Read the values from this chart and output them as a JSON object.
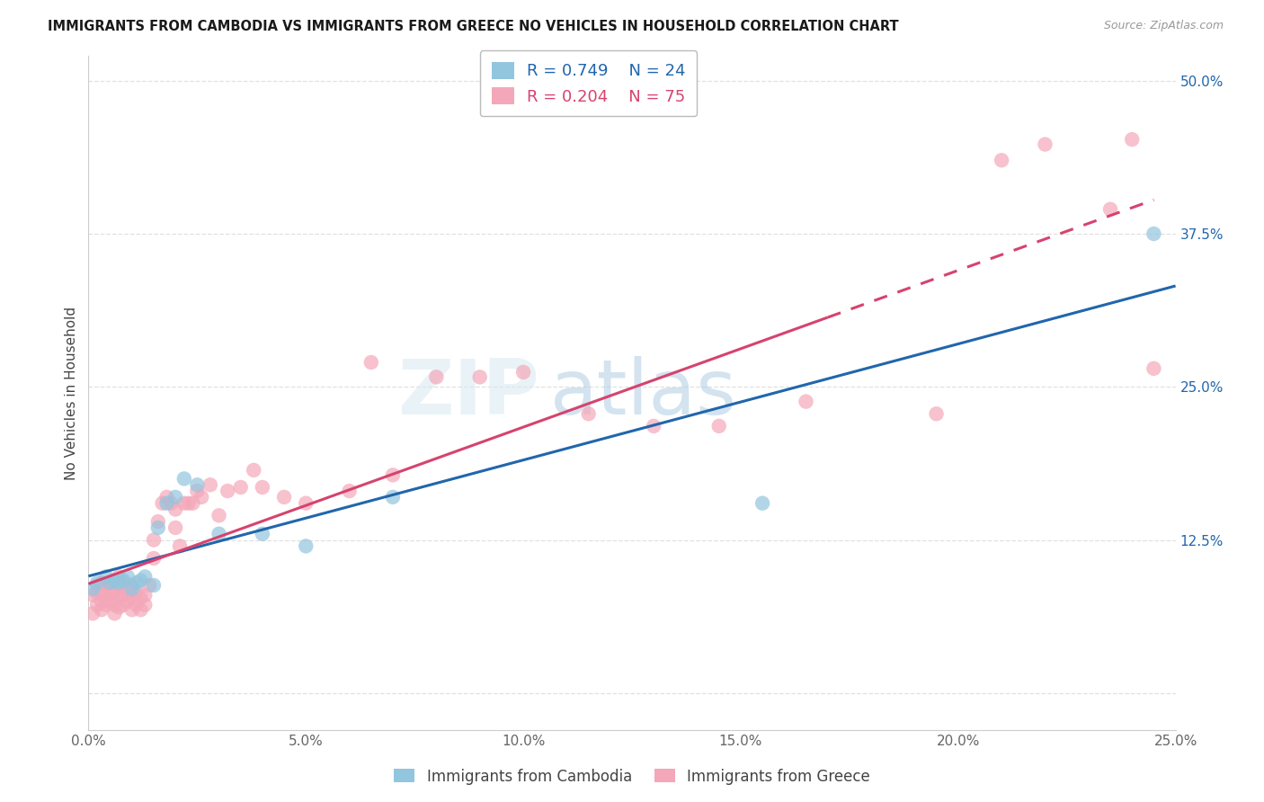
{
  "title": "IMMIGRANTS FROM CAMBODIA VS IMMIGRANTS FROM GREECE NO VEHICLES IN HOUSEHOLD CORRELATION CHART",
  "source": "Source: ZipAtlas.com",
  "ylabel": "No Vehicles in Household",
  "xlim": [
    0.0,
    0.25
  ],
  "ylim": [
    -0.03,
    0.52
  ],
  "xticks": [
    0.0,
    0.05,
    0.1,
    0.15,
    0.2,
    0.25
  ],
  "xtick_labels": [
    "0.0%",
    "5.0%",
    "10.0%",
    "15.0%",
    "20.0%",
    "25.0%"
  ],
  "ytick_vals": [
    0.0,
    0.125,
    0.25,
    0.375,
    0.5
  ],
  "ytick_labels": [
    "0.0%",
    "12.5%",
    "25.0%",
    "37.5%",
    "50.0%"
  ],
  "right_ytick_vals": [
    0.5,
    0.375,
    0.25,
    0.125
  ],
  "right_ytick_labels": [
    "50.0%",
    "37.5%",
    "25.0%",
    "12.5%"
  ],
  "legend_r_cambodia": "0.749",
  "legend_n_cambodia": "24",
  "legend_r_greece": "0.204",
  "legend_n_greece": "75",
  "cambodia_color": "#92c5de",
  "greece_color": "#f4a7b9",
  "cambodia_line_color": "#2166ac",
  "greece_line_color": "#d6436e",
  "background_color": "#ffffff",
  "grid_color": "#e0e0e0",
  "watermark_zip_color": "#d8e8f2",
  "watermark_atlas_color": "#a8c8e0",
  "cambodia_x": [
    0.001,
    0.002,
    0.004,
    0.005,
    0.006,
    0.007,
    0.008,
    0.009,
    0.01,
    0.011,
    0.012,
    0.013,
    0.015,
    0.016,
    0.018,
    0.02,
    0.022,
    0.025,
    0.03,
    0.04,
    0.05,
    0.07,
    0.155,
    0.245
  ],
  "cambodia_y": [
    0.085,
    0.09,
    0.095,
    0.09,
    0.092,
    0.09,
    0.092,
    0.095,
    0.085,
    0.09,
    0.092,
    0.095,
    0.088,
    0.135,
    0.155,
    0.16,
    0.175,
    0.17,
    0.13,
    0.13,
    0.12,
    0.16,
    0.155,
    0.375
  ],
  "greece_x": [
    0.001,
    0.001,
    0.002,
    0.002,
    0.002,
    0.003,
    0.003,
    0.003,
    0.003,
    0.004,
    0.004,
    0.004,
    0.005,
    0.005,
    0.005,
    0.006,
    0.006,
    0.006,
    0.007,
    0.007,
    0.007,
    0.007,
    0.008,
    0.008,
    0.008,
    0.009,
    0.009,
    0.01,
    0.01,
    0.01,
    0.011,
    0.011,
    0.012,
    0.012,
    0.013,
    0.013,
    0.014,
    0.015,
    0.015,
    0.016,
    0.017,
    0.018,
    0.019,
    0.02,
    0.02,
    0.021,
    0.022,
    0.023,
    0.024,
    0.025,
    0.026,
    0.028,
    0.03,
    0.032,
    0.035,
    0.038,
    0.04,
    0.045,
    0.05,
    0.06,
    0.065,
    0.07,
    0.08,
    0.09,
    0.1,
    0.115,
    0.13,
    0.145,
    0.165,
    0.195,
    0.21,
    0.22,
    0.235,
    0.24,
    0.245
  ],
  "greece_y": [
    0.065,
    0.08,
    0.072,
    0.082,
    0.088,
    0.068,
    0.075,
    0.082,
    0.09,
    0.072,
    0.08,
    0.088,
    0.075,
    0.082,
    0.09,
    0.065,
    0.072,
    0.082,
    0.07,
    0.078,
    0.085,
    0.095,
    0.072,
    0.08,
    0.09,
    0.075,
    0.082,
    0.068,
    0.078,
    0.088,
    0.072,
    0.082,
    0.068,
    0.078,
    0.072,
    0.08,
    0.088,
    0.11,
    0.125,
    0.14,
    0.155,
    0.16,
    0.155,
    0.135,
    0.15,
    0.12,
    0.155,
    0.155,
    0.155,
    0.165,
    0.16,
    0.17,
    0.145,
    0.165,
    0.168,
    0.182,
    0.168,
    0.16,
    0.155,
    0.165,
    0.27,
    0.178,
    0.258,
    0.258,
    0.262,
    0.228,
    0.218,
    0.218,
    0.238,
    0.228,
    0.435,
    0.448,
    0.395,
    0.452,
    0.265
  ]
}
